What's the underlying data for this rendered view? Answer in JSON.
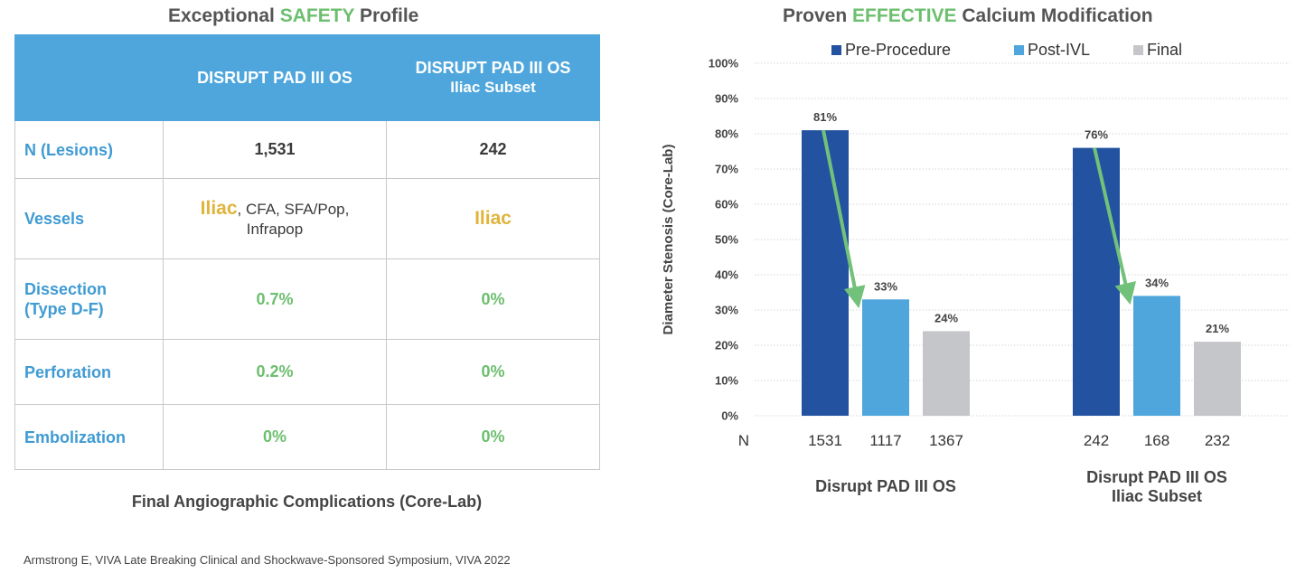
{
  "left_panel": {
    "title_pre": "Exceptional ",
    "title_highlight": "SAFETY",
    "title_post": " Profile",
    "table": {
      "headers": [
        "",
        "DISRUPT PAD III OS",
        "DISRUPT PAD III OS",
        "Iliac Subset"
      ],
      "rows": [
        {
          "label": "N (Lesions)",
          "col1": "1,531",
          "col2": "242"
        },
        {
          "label": "Vessels",
          "col1_highlight": "Iliac",
          "col1_rest_a": ", CFA, SFA/Pop,",
          "col1_rest_b": "Infrapop",
          "col2": "Iliac"
        },
        {
          "label_a": "Dissection",
          "label_b": "(Type D-F)",
          "col1": "0.7%",
          "col2": "0%"
        },
        {
          "label": "Perforation",
          "col1": "0.2%",
          "col2": "0%"
        },
        {
          "label": "Embolization",
          "col1": "0%",
          "col2": "0%"
        }
      ]
    },
    "caption": "Final Angiographic Complications (Core-Lab)",
    "citation": "Armstrong E, VIVA Late Breaking Clinical and Shockwave-Sponsored Symposium, VIVA 2022"
  },
  "right_panel": {
    "title_pre": "Proven ",
    "title_highlight": "EFFECTIVE",
    "title_post": " Calcium Modification"
  },
  "colors": {
    "pre": "#2353a0",
    "post": "#4fa6dc",
    "final": "#c4c6c9",
    "arrow": "#72c17a",
    "accent_green": "#6cbf6e",
    "accent_gold": "#e0b43a"
  },
  "chart_data": {
    "type": "bar",
    "ylabel": "Diameter Stenosis (Core-Lab)",
    "ylim": [
      0,
      100
    ],
    "yticks": [
      "0%",
      "10%",
      "20%",
      "30%",
      "40%",
      "50%",
      "60%",
      "70%",
      "80%",
      "90%",
      "100%"
    ],
    "grid": true,
    "legend_position": "top",
    "n_row_label": "N",
    "series": [
      {
        "name": "Pre-Procedure",
        "color_key": "pre"
      },
      {
        "name": "Post-IVL",
        "color_key": "post"
      },
      {
        "name": "Final",
        "color_key": "final"
      }
    ],
    "groups": [
      {
        "label_lines": [
          "Disrupt PAD III OS"
        ],
        "values": [
          81,
          33,
          24
        ],
        "value_labels": [
          "81%",
          "33%",
          "24%"
        ],
        "n": [
          "1531",
          "1117",
          "1367"
        ]
      },
      {
        "label_lines": [
          "Disrupt PAD III OS",
          "Iliac Subset"
        ],
        "values": [
          76,
          34,
          21
        ],
        "value_labels": [
          "76%",
          "34%",
          "21%"
        ],
        "n": [
          "242",
          "168",
          "232"
        ]
      }
    ],
    "arrows": "pre-to-post in each group"
  }
}
